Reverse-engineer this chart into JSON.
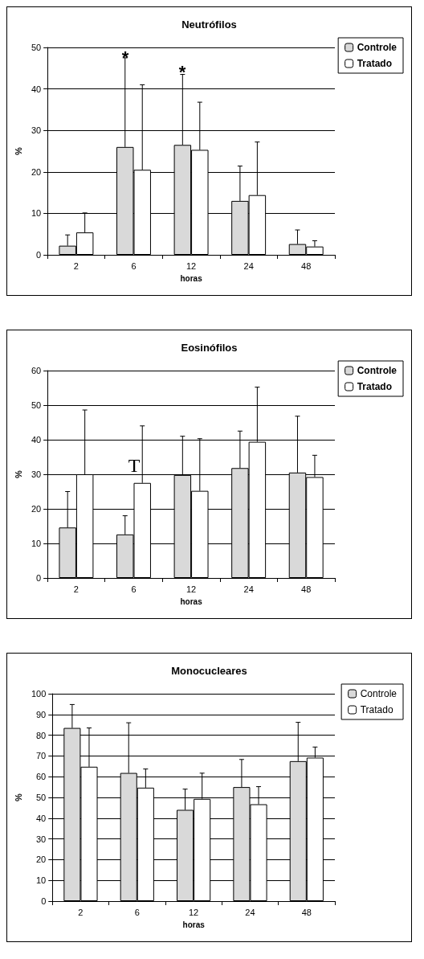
{
  "chart_data": [
    {
      "type": "bar",
      "title": "Neutrófilos",
      "xlabel": "horas",
      "ylabel": "%",
      "categories": [
        "2",
        "6",
        "12",
        "24",
        "48"
      ],
      "ylim": [
        0,
        50
      ],
      "yticks": [
        0,
        10,
        20,
        30,
        40,
        50
      ],
      "grid": "y",
      "legend": "top right",
      "series": [
        {
          "name": "Controle",
          "color": "#d9d9d9",
          "values": [
            2.2,
            26,
            26.5,
            13,
            2.6
          ],
          "errors": [
            [
              2.2,
              4.8
            ],
            [
              26,
              47.5
            ],
            [
              26.5,
              43.5
            ],
            [
              13,
              21.4
            ],
            [
              2.6,
              6
            ]
          ]
        },
        {
          "name": "Tratado",
          "color": "#ffffff",
          "values": [
            5.4,
            20.5,
            25.3,
            14.4,
            2
          ],
          "errors": [
            [
              5.4,
              10.1
            ],
            [
              20.5,
              41
            ],
            [
              25.3,
              36.8
            ],
            [
              14.4,
              27.2
            ],
            [
              2,
              3.4
            ]
          ]
        }
      ],
      "annotations": [
        "*",
        "*"
      ]
    },
    {
      "type": "bar",
      "title": "Eosinófilos",
      "xlabel": "horas",
      "ylabel": "%",
      "categories": [
        "2",
        "6",
        "12",
        "24",
        "48"
      ],
      "ylim": [
        0,
        60
      ],
      "yticks": [
        0,
        10,
        20,
        30,
        40,
        50,
        60
      ],
      "grid": "y",
      "legend": "top right",
      "series": [
        {
          "name": "Controle",
          "color": "#d9d9d9",
          "values": [
            14.6,
            12.6,
            29.8,
            31.8,
            30.5
          ],
          "errors": [
            [
              14.6,
              25
            ],
            [
              12.6,
              18
            ],
            [
              29.8,
              41
            ],
            [
              31.8,
              42.5
            ],
            [
              30.5,
              46.8
            ]
          ]
        },
        {
          "name": "Tratado",
          "color": "#ffffff",
          "values": [
            30,
            27.5,
            25.2,
            39.4,
            29.2
          ],
          "errors": [
            [
              30,
              48.6
            ],
            [
              27.5,
              44
            ],
            [
              25.2,
              40.3
            ],
            [
              39.4,
              55.2
            ],
            [
              29.2,
              35.5
            ]
          ]
        }
      ],
      "annotations": [
        "T"
      ]
    },
    {
      "type": "bar",
      "title": "Monocucleares",
      "xlabel": "horas",
      "ylabel": "%",
      "categories": [
        "2",
        "6",
        "12",
        "24",
        "48"
      ],
      "ylim": [
        0,
        100
      ],
      "yticks": [
        0,
        10,
        20,
        30,
        40,
        50,
        60,
        70,
        80,
        90,
        100
      ],
      "grid": "y",
      "legend": "top right",
      "series": [
        {
          "name": "Controle",
          "color": "#d9d9d9",
          "values": [
            83.5,
            61.8,
            44,
            55,
            67.5
          ],
          "errors": [
            [
              83.5,
              94.8
            ],
            [
              61.8,
              86
            ],
            [
              44,
              54
            ],
            [
              55,
              68.3
            ],
            [
              67.5,
              86.2
            ]
          ]
        },
        {
          "name": "Tratado",
          "color": "#ffffff",
          "values": [
            64.8,
            54.7,
            49.3,
            46.7,
            69.2
          ],
          "errors": [
            [
              64.8,
              83.5
            ],
            [
              54.7,
              63.7
            ],
            [
              49.3,
              61.7
            ],
            [
              46.7,
              55.2
            ],
            [
              69.2,
              74.3
            ]
          ]
        }
      ]
    }
  ]
}
